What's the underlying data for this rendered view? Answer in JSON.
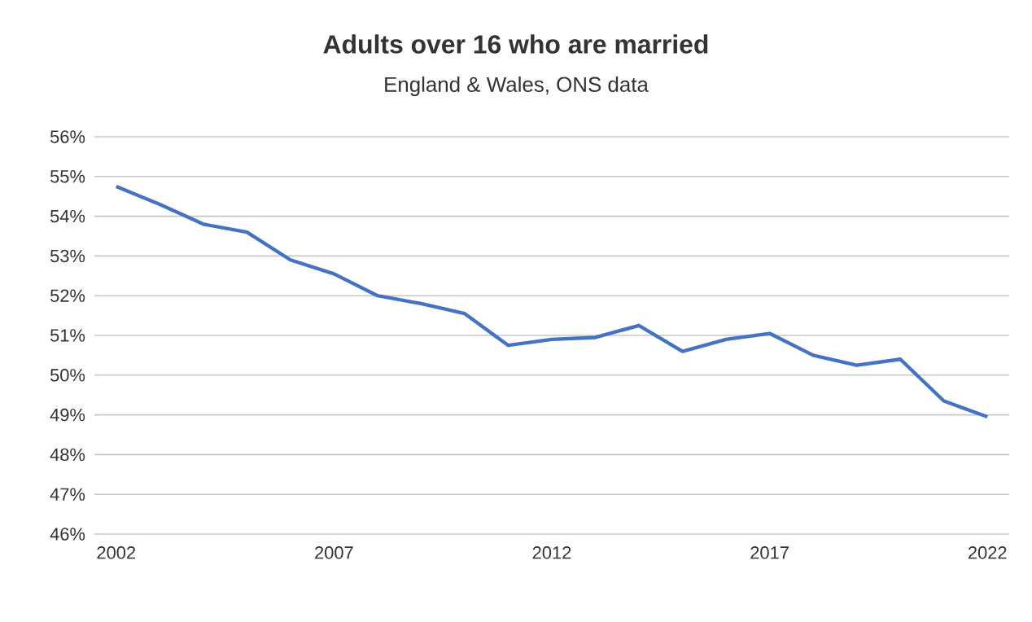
{
  "chart_data": {
    "type": "line",
    "title": "Adults over 16 who are married",
    "subtitle": "England & Wales, ONS data",
    "x": [
      2002,
      2003,
      2004,
      2005,
      2006,
      2007,
      2008,
      2009,
      2010,
      2011,
      2012,
      2013,
      2014,
      2015,
      2016,
      2017,
      2018,
      2019,
      2020,
      2021,
      2022
    ],
    "series": [
      {
        "color": "#4472c4",
        "values": [
          54.75,
          54.3,
          53.8,
          53.6,
          52.9,
          52.55,
          52.0,
          51.8,
          51.55,
          50.75,
          50.9,
          50.95,
          51.25,
          50.6,
          50.9,
          51.05,
          50.5,
          50.25,
          50.4,
          49.35,
          48.95
        ]
      }
    ],
    "xlim": [
      2001.5,
      2022.5
    ],
    "xticks": [
      2002,
      2007,
      2012,
      2017,
      2022
    ],
    "ylim": [
      46,
      56
    ],
    "yticks": [
      {
        "value": 46,
        "label": "46%"
      },
      {
        "value": 47,
        "label": "47%"
      },
      {
        "value": 48,
        "label": "48%"
      },
      {
        "value": 49,
        "label": "49%"
      },
      {
        "value": 50,
        "label": "50%"
      },
      {
        "value": 51,
        "label": "51%"
      },
      {
        "value": 52,
        "label": "52%"
      },
      {
        "value": 53,
        "label": "53%"
      },
      {
        "value": 54,
        "label": "54%"
      },
      {
        "value": 55,
        "label": "55%"
      },
      {
        "value": 56,
        "label": "56%"
      }
    ],
    "grid": "y",
    "marker": "none",
    "line_style": "solid"
  }
}
